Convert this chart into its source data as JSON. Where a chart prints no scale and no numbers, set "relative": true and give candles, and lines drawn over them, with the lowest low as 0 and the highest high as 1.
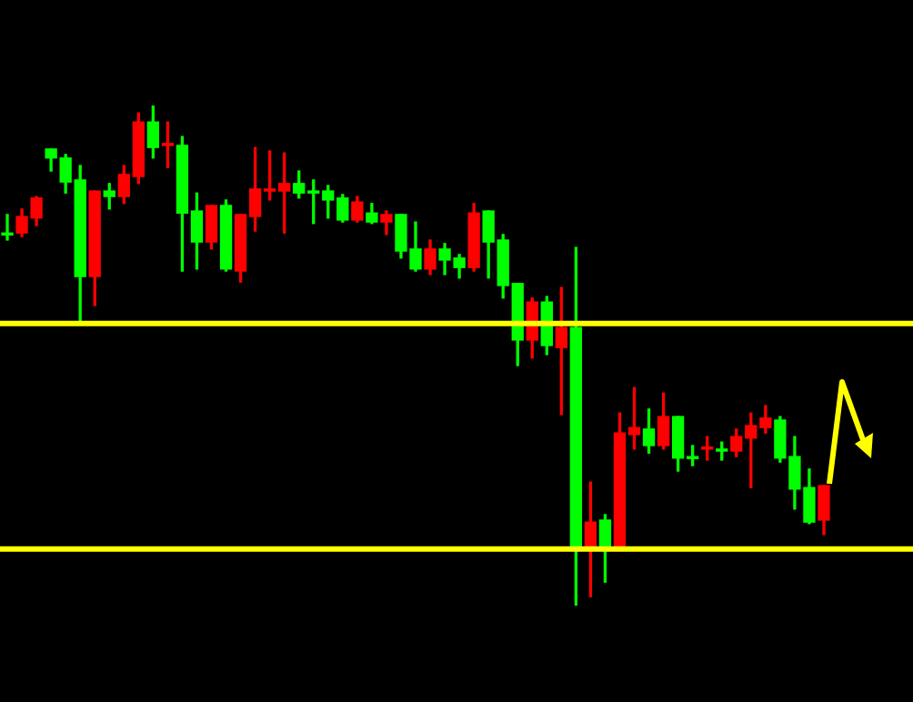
{
  "chart_data": {
    "type": "candlestick",
    "relative": true,
    "categories": [
      null,
      null,
      null,
      null,
      null,
      null,
      null,
      null,
      null,
      null,
      null,
      null,
      null,
      null,
      null,
      null,
      null,
      null,
      null,
      null,
      null,
      null,
      null,
      null,
      null,
      null,
      null,
      null,
      null,
      null,
      null,
      null,
      null,
      null,
      null,
      null,
      null,
      null,
      null,
      null,
      null,
      null,
      null,
      null,
      null,
      null,
      null,
      null,
      null,
      null,
      null,
      null,
      null,
      null,
      null,
      null,
      null
    ],
    "ohlc": [
      [
        0.745,
        0.782,
        0.731,
        0.741
      ],
      [
        0.745,
        0.793,
        0.738,
        0.778
      ],
      [
        0.775,
        0.818,
        0.76,
        0.815
      ],
      [
        0.913,
        0.913,
        0.869,
        0.895
      ],
      [
        0.895,
        0.902,
        0.825,
        0.847
      ],
      [
        0.851,
        0.88,
        0.564,
        0.658
      ],
      [
        0.658,
        0.829,
        0.6,
        0.829
      ],
      [
        0.829,
        0.844,
        0.793,
        0.818
      ],
      [
        0.818,
        0.88,
        0.804,
        0.862
      ],
      [
        0.858,
        0.985,
        0.844,
        0.967
      ],
      [
        0.967,
        1,
        0.895,
        0.916
      ],
      [
        0.92,
        0.967,
        0.876,
        0.924
      ],
      [
        0.92,
        0.938,
        0.669,
        0.785
      ],
      [
        0.789,
        0.825,
        0.673,
        0.727
      ],
      [
        0.727,
        0.8,
        0.713,
        0.8
      ],
      [
        0.8,
        0.811,
        0.669,
        0.673
      ],
      [
        0.669,
        0.782,
        0.647,
        0.782
      ],
      [
        0.778,
        0.916,
        0.749,
        0.833
      ],
      [
        0.829,
        0.909,
        0.811,
        0.833
      ],
      [
        0.829,
        0.905,
        0.745,
        0.844
      ],
      [
        0.844,
        0.869,
        0.815,
        0.825
      ],
      [
        0.829,
        0.851,
        0.764,
        0.825
      ],
      [
        0.829,
        0.84,
        0.775,
        0.811
      ],
      [
        0.815,
        0.822,
        0.767,
        0.771
      ],
      [
        0.771,
        0.818,
        0.767,
        0.807
      ],
      [
        0.785,
        0.804,
        0.764,
        0.767
      ],
      [
        0.767,
        0.789,
        0.742,
        0.782
      ],
      [
        0.782,
        0.782,
        0.695,
        0.709
      ],
      [
        0.713,
        0.767,
        0.669,
        0.673
      ],
      [
        0.673,
        0.731,
        0.662,
        0.713
      ],
      [
        0.713,
        0.724,
        0.662,
        0.691
      ],
      [
        0.695,
        0.702,
        0.655,
        0.676
      ],
      [
        0.676,
        0.804,
        0.669,
        0.785
      ],
      [
        0.789,
        0.789,
        0.655,
        0.727
      ],
      [
        0.731,
        0.742,
        0.615,
        0.64
      ],
      [
        0.644,
        0.644,
        0.48,
        0.531
      ],
      [
        0.531,
        0.615,
        0.495,
        0.607
      ],
      [
        0.607,
        0.618,
        0.502,
        0.52
      ],
      [
        0.516,
        0.636,
        0.382,
        0.556
      ],
      [
        0.556,
        0.716,
        0,
        0.113
      ],
      [
        0.113,
        0.247,
        0.018,
        0.167
      ],
      [
        0.171,
        0.182,
        0.047,
        0.113
      ],
      [
        0.113,
        0.385,
        0.113,
        0.345
      ],
      [
        0.342,
        0.436,
        0.313,
        0.356
      ],
      [
        0.353,
        0.393,
        0.305,
        0.32
      ],
      [
        0.32,
        0.425,
        0.313,
        0.378
      ],
      [
        0.378,
        0.378,
        0.269,
        0.295
      ],
      [
        0.298,
        0.32,
        0.28,
        0.294
      ],
      [
        0.313,
        0.338,
        0.291,
        0.317
      ],
      [
        0.313,
        0.327,
        0.291,
        0.309
      ],
      [
        0.309,
        0.353,
        0.298,
        0.338
      ],
      [
        0.335,
        0.385,
        0.236,
        0.36
      ],
      [
        0.356,
        0.4,
        0.345,
        0.375
      ],
      [
        0.371,
        0.378,
        0.287,
        0.295
      ],
      [
        0.298,
        0.338,
        0.193,
        0.233
      ],
      [
        0.236,
        0.273,
        0.164,
        0.167
      ],
      [
        0.171,
        0.24,
        0.142,
        0.24
      ]
    ],
    "colors": [
      "#00ff00",
      "#ff0000",
      "#ff0000",
      "#00ff00",
      "#00ff00",
      "#00ff00",
      "#ff0000",
      "#00ff00",
      "#ff0000",
      "#ff0000",
      "#00ff00",
      "#ff0000",
      "#00ff00",
      "#00ff00",
      "#ff0000",
      "#00ff00",
      "#ff0000",
      "#ff0000",
      "#ff0000",
      "#ff0000",
      "#00ff00",
      "#00ff00",
      "#00ff00",
      "#00ff00",
      "#ff0000",
      "#00ff00",
      "#ff0000",
      "#00ff00",
      "#00ff00",
      "#ff0000",
      "#00ff00",
      "#00ff00",
      "#ff0000",
      "#00ff00",
      "#00ff00",
      "#00ff00",
      "#ff0000",
      "#00ff00",
      "#ff0000",
      "#00ff00",
      "#ff0000",
      "#00ff00",
      "#ff0000",
      "#ff0000",
      "#00ff00",
      "#ff0000",
      "#00ff00",
      "#00ff00",
      "#ff0000",
      "#00ff00",
      "#ff0000",
      "#ff0000",
      "#ff0000",
      "#00ff00",
      "#00ff00",
      "#00ff00",
      "#ff0000"
    ],
    "ref_lines": [
      {
        "axis": "y",
        "value": 0.564,
        "color": "#ffff00"
      },
      {
        "axis": "y",
        "value": 0.113,
        "color": "#ffff00"
      }
    ]
  }
}
